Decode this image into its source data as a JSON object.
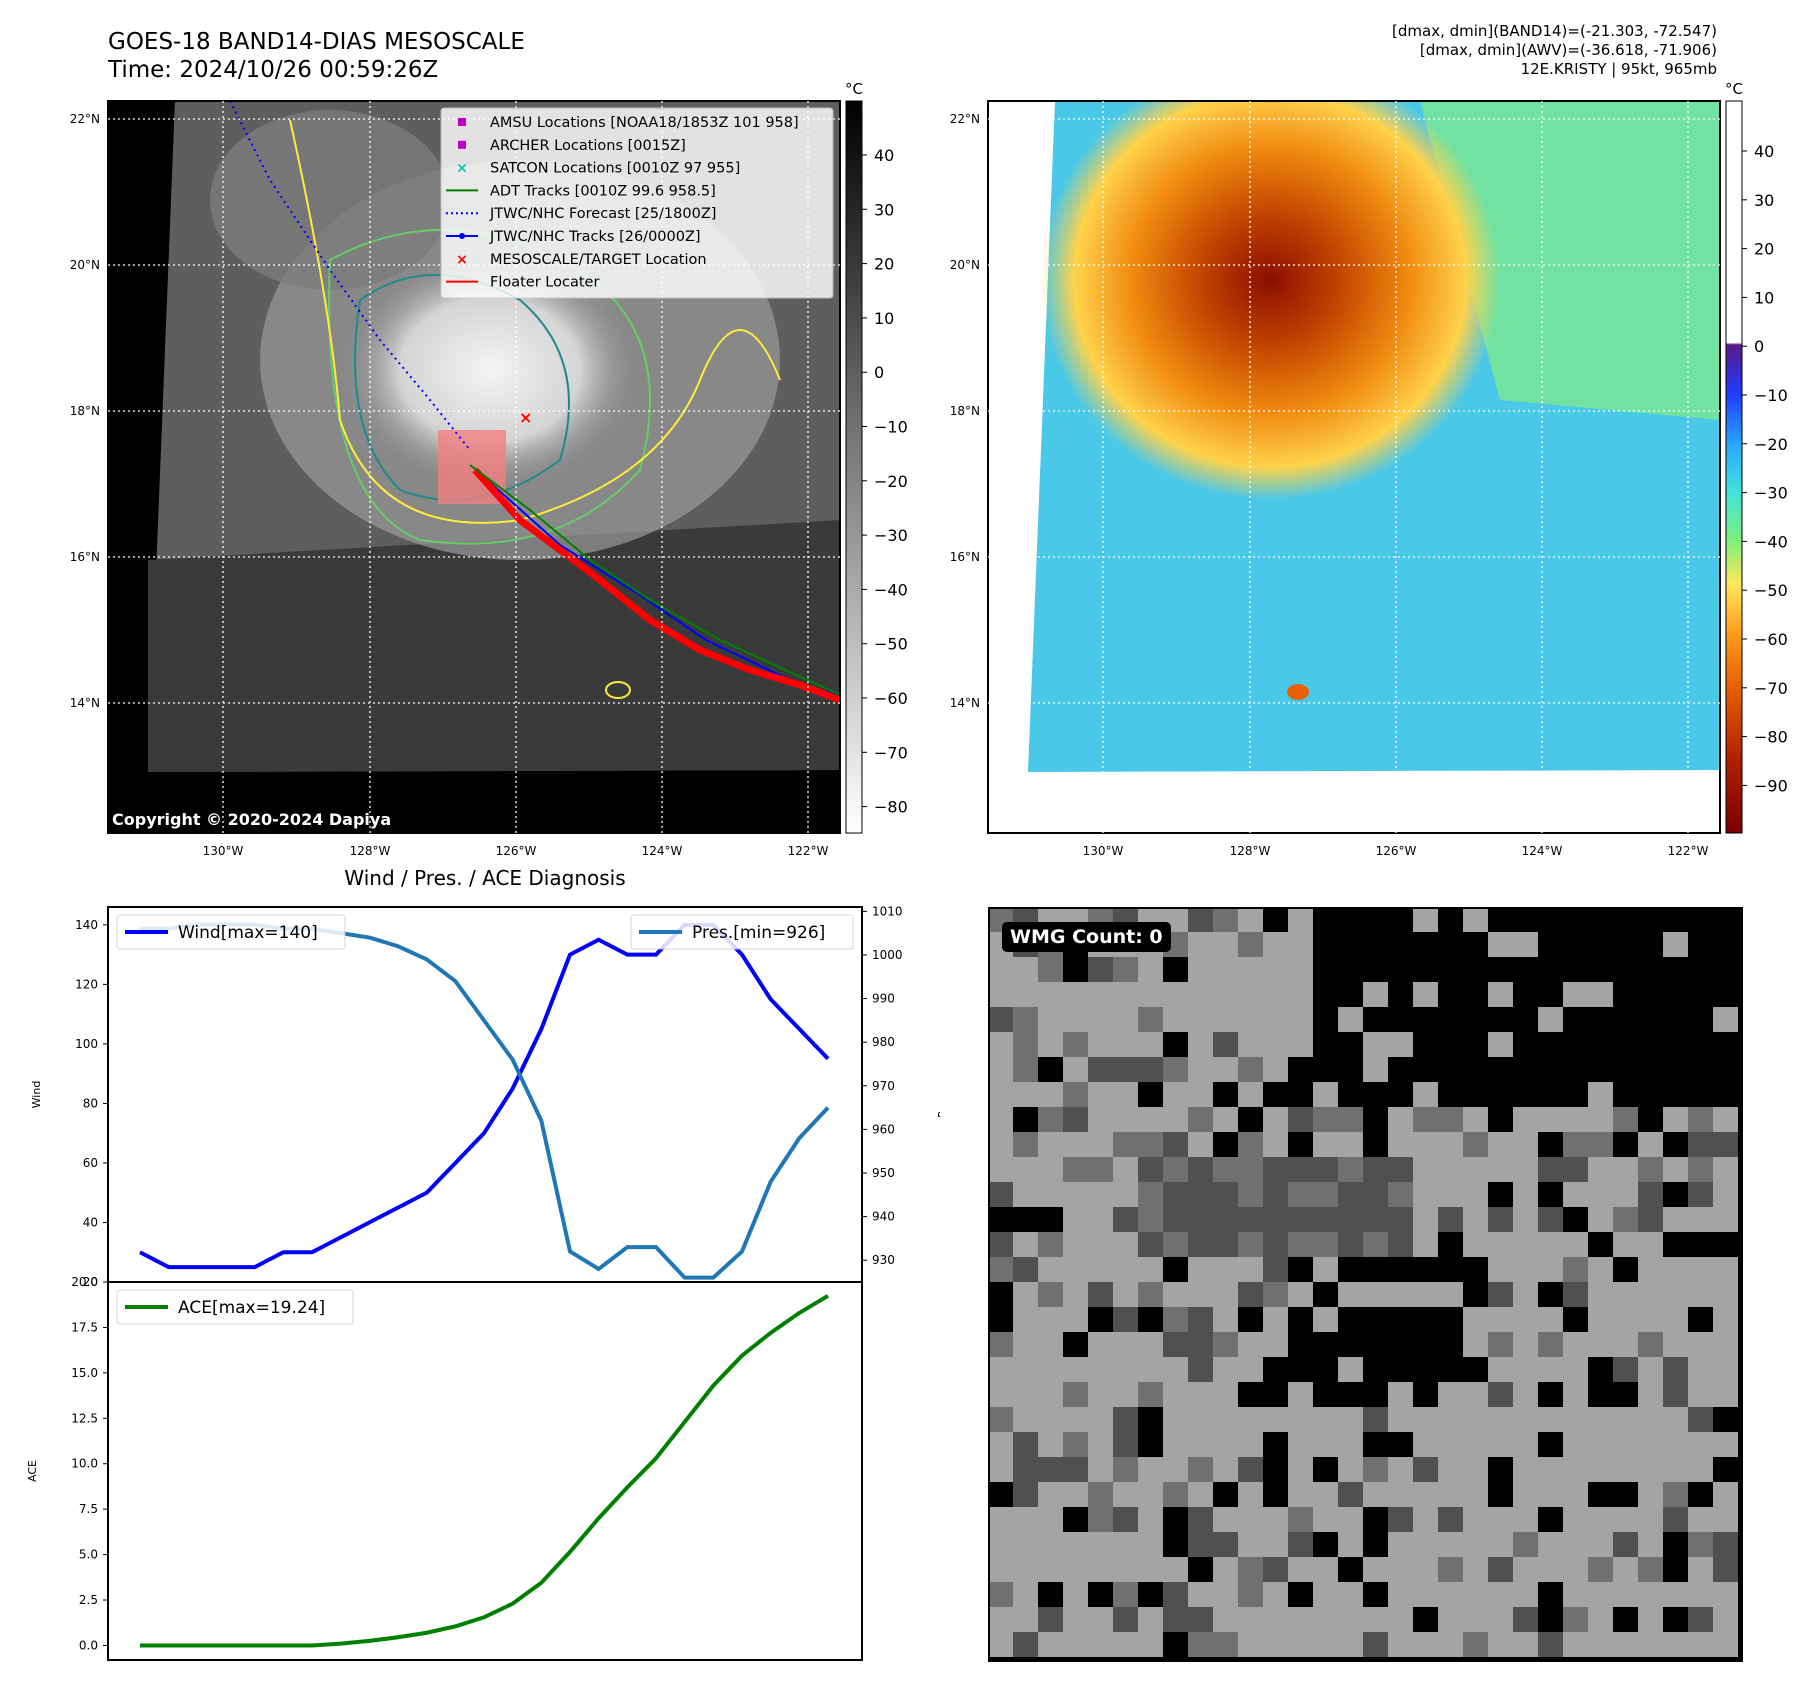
{
  "header": {
    "title_line1": "GOES-18 BAND14-DIAS MESOSCALE",
    "title_line2": "Time: 2024/10/26 00:59:26Z",
    "info_line1": "[dmax, dmin](BAND14)=(-21.303, -72.547)",
    "info_line2": "[dmax, dmin](AWV)=(-36.618, -71.906)",
    "info_line3": "12E.KRISTY | 95kt, 965mb"
  },
  "map_ir": {
    "unit": "°C",
    "lat_labels": [
      "22°N",
      "20°N",
      "18°N",
      "16°N",
      "14°N"
    ],
    "lon_labels": [
      "130°W",
      "128°W",
      "126°W",
      "124°W",
      "122°W"
    ],
    "colorbar_ticks": [
      "40",
      "30",
      "20",
      "10",
      "0",
      "−10",
      "−20",
      "−30",
      "−40",
      "−50",
      "−60",
      "−70",
      "−80"
    ],
    "copyright": "Copyright © 2020-2024 Dapiya",
    "legend": [
      {
        "label": "AMSU Locations [NOAA18/1853Z 101 958]",
        "marker": "square",
        "color": "#c000c0"
      },
      {
        "label": "ARCHER Locations [0015Z]",
        "marker": "square",
        "color": "#c000c0"
      },
      {
        "label": "SATCON Locations [0010Z 97 955]",
        "marker": "x",
        "color": "#00c0c0"
      },
      {
        "label": "ADT Tracks [0010Z 99.6 958.5]",
        "marker": "line",
        "color": "#008000"
      },
      {
        "label": "JTWC/NHC Forecast [25/1800Z]",
        "marker": "dotted",
        "color": "#0000ff"
      },
      {
        "label": "JTWC/NHC Tracks [26/0000Z]",
        "marker": "line-dot",
        "color": "#0000ff"
      },
      {
        "label": "MESOSCALE/TARGET Location",
        "marker": "x",
        "color": "#ff0000"
      },
      {
        "label": "Floater Locater",
        "marker": "line",
        "color": "#ff0000"
      }
    ]
  },
  "map_awv": {
    "unit": "°C",
    "lat_labels": [
      "22°N",
      "20°N",
      "18°N",
      "16°N",
      "14°N"
    ],
    "lon_labels": [
      "130°W",
      "128°W",
      "126°W",
      "124°W",
      "122°W"
    ],
    "colorbar_ticks": [
      "40",
      "30",
      "20",
      "10",
      "0",
      "−10",
      "−20",
      "−30",
      "−40",
      "−50",
      "−60",
      "−70",
      "−80",
      "−90"
    ]
  },
  "chart_data": [
    {
      "type": "line",
      "title": "Wind / Pres. / ACE Diagnosis",
      "ylabel": "Wind",
      "ylabel_right": "Pressure",
      "ylim": [
        20,
        146
      ],
      "ylim_right": [
        925,
        1011
      ],
      "yticks": [
        20,
        40,
        60,
        80,
        100,
        120,
        140
      ],
      "yticks_right": [
        930,
        940,
        950,
        960,
        970,
        980,
        990,
        1000,
        1010
      ],
      "series": [
        {
          "name": "Wind[max=140]",
          "axis": "left",
          "color": "#0000ff",
          "values": [
            30,
            25,
            25,
            25,
            25,
            30,
            30,
            35,
            40,
            45,
            50,
            60,
            70,
            85,
            105,
            130,
            135,
            130,
            130,
            140,
            140,
            130,
            115,
            105,
            95
          ]
        },
        {
          "name": "Pres.[min=926]",
          "axis": "right",
          "color": "#1f77b4",
          "values": [
            1006,
            1006,
            1007,
            1007,
            1007,
            1006,
            1006,
            1005,
            1004,
            1002,
            999,
            994,
            985,
            976,
            962,
            932,
            928,
            933,
            933,
            926,
            926,
            932,
            948,
            958,
            965
          ]
        }
      ]
    },
    {
      "type": "line",
      "ylabel": "ACE",
      "ylim": [
        -0.8,
        20.0
      ],
      "yticks": [
        0.0,
        2.5,
        5.0,
        7.5,
        10.0,
        12.5,
        15.0,
        17.5,
        20.0
      ],
      "series": [
        {
          "name": "ACE[max=19.24]",
          "color": "#008000",
          "values": [
            0,
            0,
            0,
            0,
            0,
            0,
            0,
            0.1,
            0.25,
            0.45,
            0.7,
            1.05,
            1.55,
            2.3,
            3.45,
            5.15,
            7.0,
            8.7,
            10.3,
            12.3,
            14.3,
            15.95,
            17.2,
            18.3,
            19.24
          ]
        }
      ]
    }
  ],
  "wmg": {
    "label": "WMG Count: 0"
  }
}
